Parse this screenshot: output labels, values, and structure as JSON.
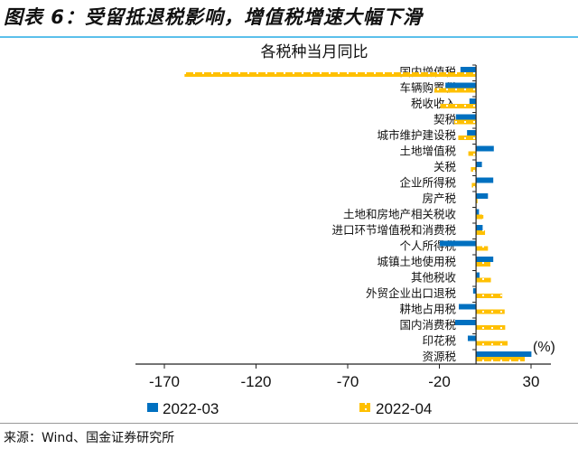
{
  "header": {
    "title": "图表 6：受留抵退税影响，增值税增速大幅下滑"
  },
  "source": "来源：Wind、国金证券研究所",
  "colors": {
    "series1": "#0070c0",
    "series2": "#ffc000",
    "rule": "#5bc0eb"
  },
  "chart_data": {
    "type": "bar",
    "orientation": "horizontal",
    "title": "各税种当月同比",
    "unit_label": "(%)",
    "categories": [
      "国内增值税",
      "车辆购置税",
      "税收收入",
      "契税",
      "城市维护建设税",
      "土地增值税",
      "关税",
      "企业所得税",
      "房产税",
      "土地和房地产相关税收",
      "进口环节增值税和消费税",
      "个人所得税",
      "城镇土地使用税",
      "其他税收",
      "外贸企业出口退税",
      "耕地占用税",
      "国内消费税",
      "印花税",
      "资源税"
    ],
    "series": [
      {
        "name": "2022-03",
        "values": [
          -8.5,
          -16.7,
          -3.6,
          -11,
          -4.9,
          9.7,
          3.2,
          9.4,
          6.5,
          1.6,
          3.6,
          -19.8,
          9.4,
          1.9,
          -1.6,
          -9.4,
          -11.4,
          -4.5,
          30.2
        ]
      },
      {
        "name": "2022-04",
        "values": [
          -159,
          -22.7,
          -19.5,
          -11.9,
          -9.7,
          -4.2,
          -2.8,
          -2.3,
          0.8,
          4,
          4.9,
          6.5,
          7.8,
          8.1,
          14.3,
          15.6,
          15.9,
          17.2,
          26.6
        ]
      }
    ],
    "xlim": [
      -170,
      30
    ],
    "xticks": [
      -170,
      -120,
      -70,
      -20,
      30
    ],
    "xtick_labels": [
      "-170",
      "-120",
      "-70",
      "-20",
      "30"
    ],
    "legend": "bottom",
    "grid": false
  }
}
